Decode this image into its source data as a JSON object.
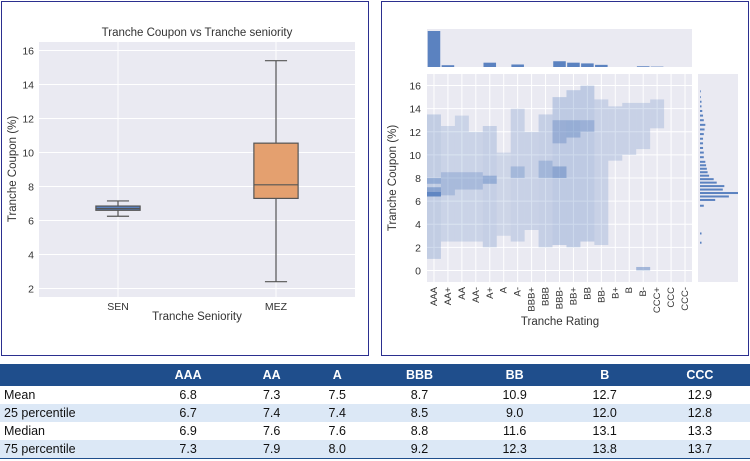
{
  "chart_data": [
    {
      "type": "box",
      "title": "Tranche Coupon vs Tranche seniority",
      "xlabel": "Tranche Seniority",
      "ylabel": "Tranche Coupon (%)",
      "ylim": [
        1.5,
        16.5
      ],
      "yticks": [
        2,
        4,
        6,
        8,
        10,
        12,
        14,
        16
      ],
      "categories": [
        "SEN",
        "MEZ"
      ],
      "boxes": [
        {
          "category": "SEN",
          "whisker_low": 6.25,
          "q1": 6.6,
          "median": 6.7,
          "q3": 6.85,
          "whisker_high": 7.15,
          "color": "#5b82c0"
        },
        {
          "category": "MEZ",
          "whisker_low": 2.4,
          "q1": 7.3,
          "median": 8.1,
          "q3": 10.55,
          "whisker_high": 15.4,
          "color": "#e4a06f"
        }
      ],
      "grid": true
    },
    {
      "type": "heatmap",
      "xlabel": "Tranche Rating",
      "ylabel": "Tranche Coupon (%)",
      "ylim": [
        -1,
        17
      ],
      "yticks": [
        0,
        2,
        4,
        6,
        8,
        10,
        12,
        14,
        16
      ],
      "categories": [
        "AAA",
        "AA+",
        "AA",
        "AA-",
        "A+",
        "A",
        "A-",
        "BBB+",
        "BBB",
        "BBB-",
        "BB+",
        "BB",
        "BB-",
        "B+",
        "B",
        "B-",
        "CCC+",
        "CCC",
        "CCC-"
      ],
      "marginal_x_counts": [
        100,
        5,
        0,
        0,
        12,
        0,
        7,
        0,
        0,
        16,
        12,
        10,
        6,
        0,
        0,
        2,
        1,
        0,
        0
      ],
      "color": "#5b82c0",
      "grid": true
    }
  ],
  "table": {
    "columns": [
      "",
      "AAA",
      "AA",
      "A",
      "BBB",
      "BB",
      "B",
      "CCC"
    ],
    "rows": [
      {
        "label": "Mean",
        "values": [
          "6.8",
          "7.3",
          "7.5",
          "8.7",
          "10.9",
          "12.7",
          "12.9"
        ]
      },
      {
        "label": "25 percentile",
        "values": [
          "6.7",
          "7.4",
          "7.4",
          "8.5",
          "9.0",
          "12.0",
          "12.8"
        ]
      },
      {
        "label": "Median",
        "values": [
          "6.9",
          "7.6",
          "7.6",
          "8.8",
          "11.6",
          "13.1",
          "13.3"
        ]
      },
      {
        "label": "75 percentile",
        "values": [
          "7.3",
          "7.9",
          "8.0",
          "9.2",
          "12.3",
          "13.8",
          "13.7"
        ]
      }
    ]
  }
}
